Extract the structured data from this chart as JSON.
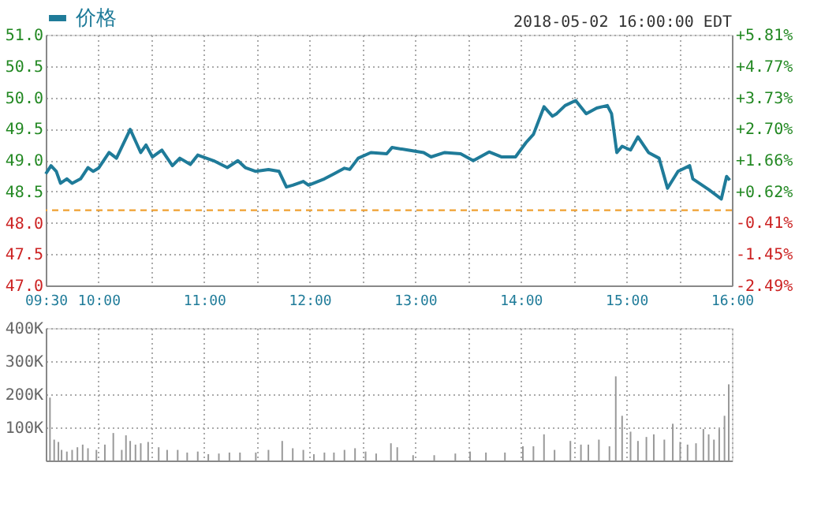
{
  "chart_data": [
    {
      "type": "line",
      "x": [
        9.5,
        9.55,
        9.6,
        9.64,
        9.7,
        9.75,
        9.83,
        9.9,
        9.95,
        10.0,
        10.1,
        10.17,
        10.3,
        10.4,
        10.45,
        10.51,
        10.6,
        10.7,
        10.77,
        10.87,
        10.94,
        11.09,
        11.22,
        11.32,
        11.39,
        11.49,
        11.61,
        11.71,
        11.78,
        11.84,
        11.94,
        11.99,
        12.14,
        12.23,
        12.33,
        12.38,
        12.46,
        12.58,
        12.73,
        12.78,
        12.93,
        13.08,
        13.15,
        13.28,
        13.43,
        13.55,
        13.7,
        13.82,
        13.95,
        14.05,
        14.12,
        14.22,
        14.3,
        14.34,
        14.42,
        14.52,
        14.62,
        14.72,
        14.82,
        14.86,
        14.91,
        14.96,
        15.04,
        15.11,
        15.21,
        15.31,
        15.39,
        15.49,
        15.6,
        15.63,
        15.78,
        15.9,
        15.95,
        15.98
      ],
      "series": [
        {
          "name": "价格",
          "color": "#1f7b99",
          "values": [
            48.78,
            48.91,
            48.82,
            48.63,
            48.7,
            48.63,
            48.7,
            48.88,
            48.82,
            48.87,
            49.12,
            49.03,
            49.49,
            49.12,
            49.24,
            49.05,
            49.16,
            48.91,
            49.03,
            48.93,
            49.08,
            48.99,
            48.88,
            48.99,
            48.88,
            48.82,
            48.85,
            48.82,
            48.57,
            48.6,
            48.66,
            48.6,
            48.7,
            48.78,
            48.87,
            48.85,
            49.03,
            49.12,
            49.1,
            49.2,
            49.16,
            49.12,
            49.05,
            49.12,
            49.1,
            48.99,
            49.13,
            49.05,
            49.05,
            49.28,
            49.41,
            49.85,
            49.7,
            49.74,
            49.87,
            49.95,
            49.74,
            49.83,
            49.87,
            49.74,
            49.12,
            49.22,
            49.16,
            49.37,
            49.12,
            49.03,
            48.55,
            48.82,
            48.91,
            48.7,
            48.53,
            48.38,
            48.74,
            48.68
          ]
        }
      ],
      "xlim": [
        9.5,
        16
      ],
      "xticks": [
        {
          "value": 9.5,
          "label": "09:30"
        },
        {
          "value": 10,
          "label": "10:00"
        },
        {
          "value": 10.5,
          "label": null
        },
        {
          "value": 11,
          "label": "11:00"
        },
        {
          "value": 11.5,
          "label": null
        },
        {
          "value": 12,
          "label": "12:00"
        },
        {
          "value": 12.5,
          "label": null
        },
        {
          "value": 13,
          "label": "13:00"
        },
        {
          "value": 13.5,
          "label": null
        },
        {
          "value": 14,
          "label": "14:00"
        },
        {
          "value": 14.5,
          "label": null
        },
        {
          "value": 15,
          "label": "15:00"
        },
        {
          "value": 15.5,
          "label": null
        },
        {
          "value": 16,
          "label": "16:00"
        }
      ],
      "ylim": [
        47,
        51
      ],
      "yticks": [
        {
          "value": 47,
          "label": "47.0"
        },
        {
          "value": 47.5,
          "label": "47.5"
        },
        {
          "value": 48,
          "label": "48.0"
        },
        {
          "value": 48.5,
          "label": "48.5"
        },
        {
          "value": 49,
          "label": "49.0"
        },
        {
          "value": 49.5,
          "label": "49.5"
        },
        {
          "value": 50,
          "label": "50.0"
        },
        {
          "value": 50.5,
          "label": "50.5"
        },
        {
          "value": 51,
          "label": "51.0"
        }
      ],
      "y2lim": [
        -2.49,
        5.81
      ],
      "y2ticks": [
        {
          "value": -2.49,
          "label": "-2.49%"
        },
        {
          "value": -1.45,
          "label": "-1.45%"
        },
        {
          "value": -0.41,
          "label": "-0.41%"
        },
        {
          "value": 0.62,
          "label": "+0.62%"
        },
        {
          "value": 1.66,
          "label": "+1.66%"
        },
        {
          "value": 2.7,
          "label": "+2.70%"
        },
        {
          "value": 3.73,
          "label": "+3.73%"
        },
        {
          "value": 4.77,
          "label": "+4.77%"
        },
        {
          "value": 5.81,
          "label": "+5.81%"
        }
      ],
      "ref_lines": [
        {
          "axis": "y",
          "value": 48.2,
          "color": "#f0a030",
          "line_style": "dashed"
        }
      ],
      "grid": true,
      "legend": "top",
      "annotations": [
        "2018-05-02 16:00:00 EDT"
      ]
    },
    {
      "type": "bar",
      "color": "#999999",
      "x": [
        9.54,
        9.58,
        9.62,
        9.65,
        9.7,
        9.75,
        9.8,
        9.85,
        9.9,
        9.98,
        10.06,
        10.14,
        10.22,
        10.26,
        10.3,
        10.35,
        10.4,
        10.47,
        10.57,
        10.65,
        10.75,
        10.84,
        10.94,
        11.04,
        11.14,
        11.24,
        11.34,
        11.49,
        11.61,
        11.74,
        11.84,
        11.94,
        12.04,
        12.14,
        12.23,
        12.33,
        12.43,
        12.53,
        12.63,
        12.77,
        12.83,
        12.98,
        13.18,
        13.38,
        13.52,
        13.67,
        13.85,
        14.02,
        14.12,
        14.22,
        14.32,
        14.47,
        14.57,
        14.64,
        14.74,
        14.84,
        14.9,
        14.96,
        15.04,
        15.11,
        15.19,
        15.26,
        15.36,
        15.44,
        15.51,
        15.58,
        15.66,
        15.73,
        15.78,
        15.83,
        15.88,
        15.93,
        15.97
      ],
      "values": [
        190000,
        63000,
        56000,
        32000,
        27000,
        32000,
        40000,
        48000,
        37000,
        32000,
        48000,
        83000,
        32000,
        76000,
        59000,
        48000,
        52000,
        56000,
        40000,
        32000,
        32000,
        24000,
        27000,
        19000,
        21000,
        24000,
        24000,
        24000,
        32000,
        59000,
        37000,
        32000,
        19000,
        24000,
        24000,
        32000,
        37000,
        27000,
        21000,
        52000,
        40000,
        16000,
        16000,
        21000,
        27000,
        24000,
        24000,
        43000,
        43000,
        79000,
        32000,
        59000,
        48000,
        48000,
        63000,
        43000,
        254000,
        135000,
        87000,
        59000,
        71000,
        79000,
        63000,
        111000,
        56000,
        48000,
        52000,
        95000,
        79000,
        63000,
        95000,
        135000,
        230000
      ],
      "xlim": [
        9.5,
        16
      ],
      "xticks": [
        9.5,
        10,
        10.5,
        11,
        11.5,
        12,
        12.5,
        13,
        13.5,
        14,
        14.5,
        15,
        15.5,
        16
      ],
      "ylim": [
        0,
        400000
      ],
      "yticks": [
        {
          "value": 100000,
          "label": "100K"
        },
        {
          "value": 200000,
          "label": "200K"
        },
        {
          "value": 300000,
          "label": "300K"
        },
        {
          "value": 400000,
          "label": "400K"
        }
      ],
      "tick_labels": "y",
      "grid": true
    }
  ]
}
